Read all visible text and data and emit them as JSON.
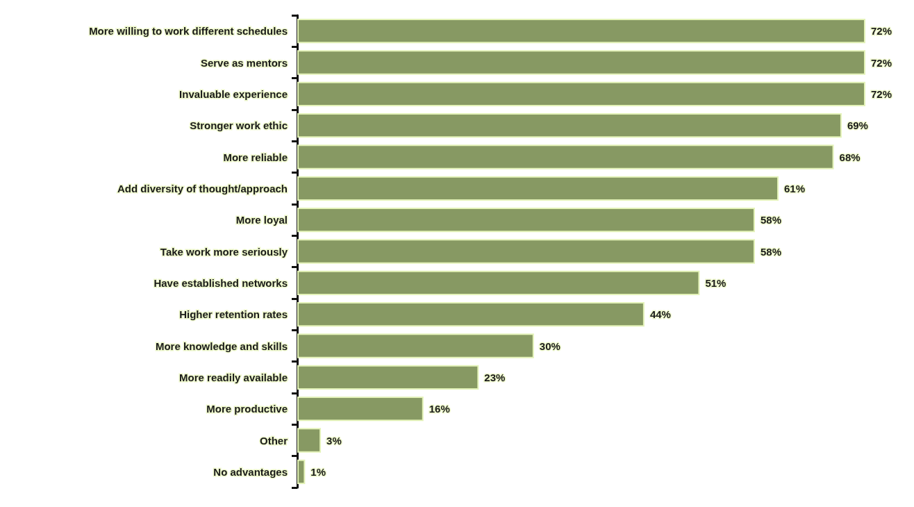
{
  "chart_data": {
    "type": "bar",
    "orientation": "horizontal",
    "color": "#879963",
    "categories": [
      "More willing to work different schedules",
      "Serve as mentors",
      "Invaluable experience",
      "Stronger work ethic",
      "More reliable",
      "Add diversity of thought/approach",
      "More loyal",
      "Take work more seriously",
      "Have established networks",
      "Higher retention rates",
      "More knowledge and skills",
      "More readily available",
      "More productive",
      "Other",
      "No advantages"
    ],
    "values": [
      72,
      72,
      72,
      69,
      68,
      61,
      58,
      58,
      51,
      44,
      30,
      23,
      16,
      3,
      1
    ],
    "value_labels": [
      "72%",
      "72%",
      "72%",
      "69%",
      "68%",
      "61%",
      "58%",
      "58%",
      "51%",
      "44%",
      "30%",
      "23%",
      "16%",
      "3%",
      "1%"
    ]
  }
}
